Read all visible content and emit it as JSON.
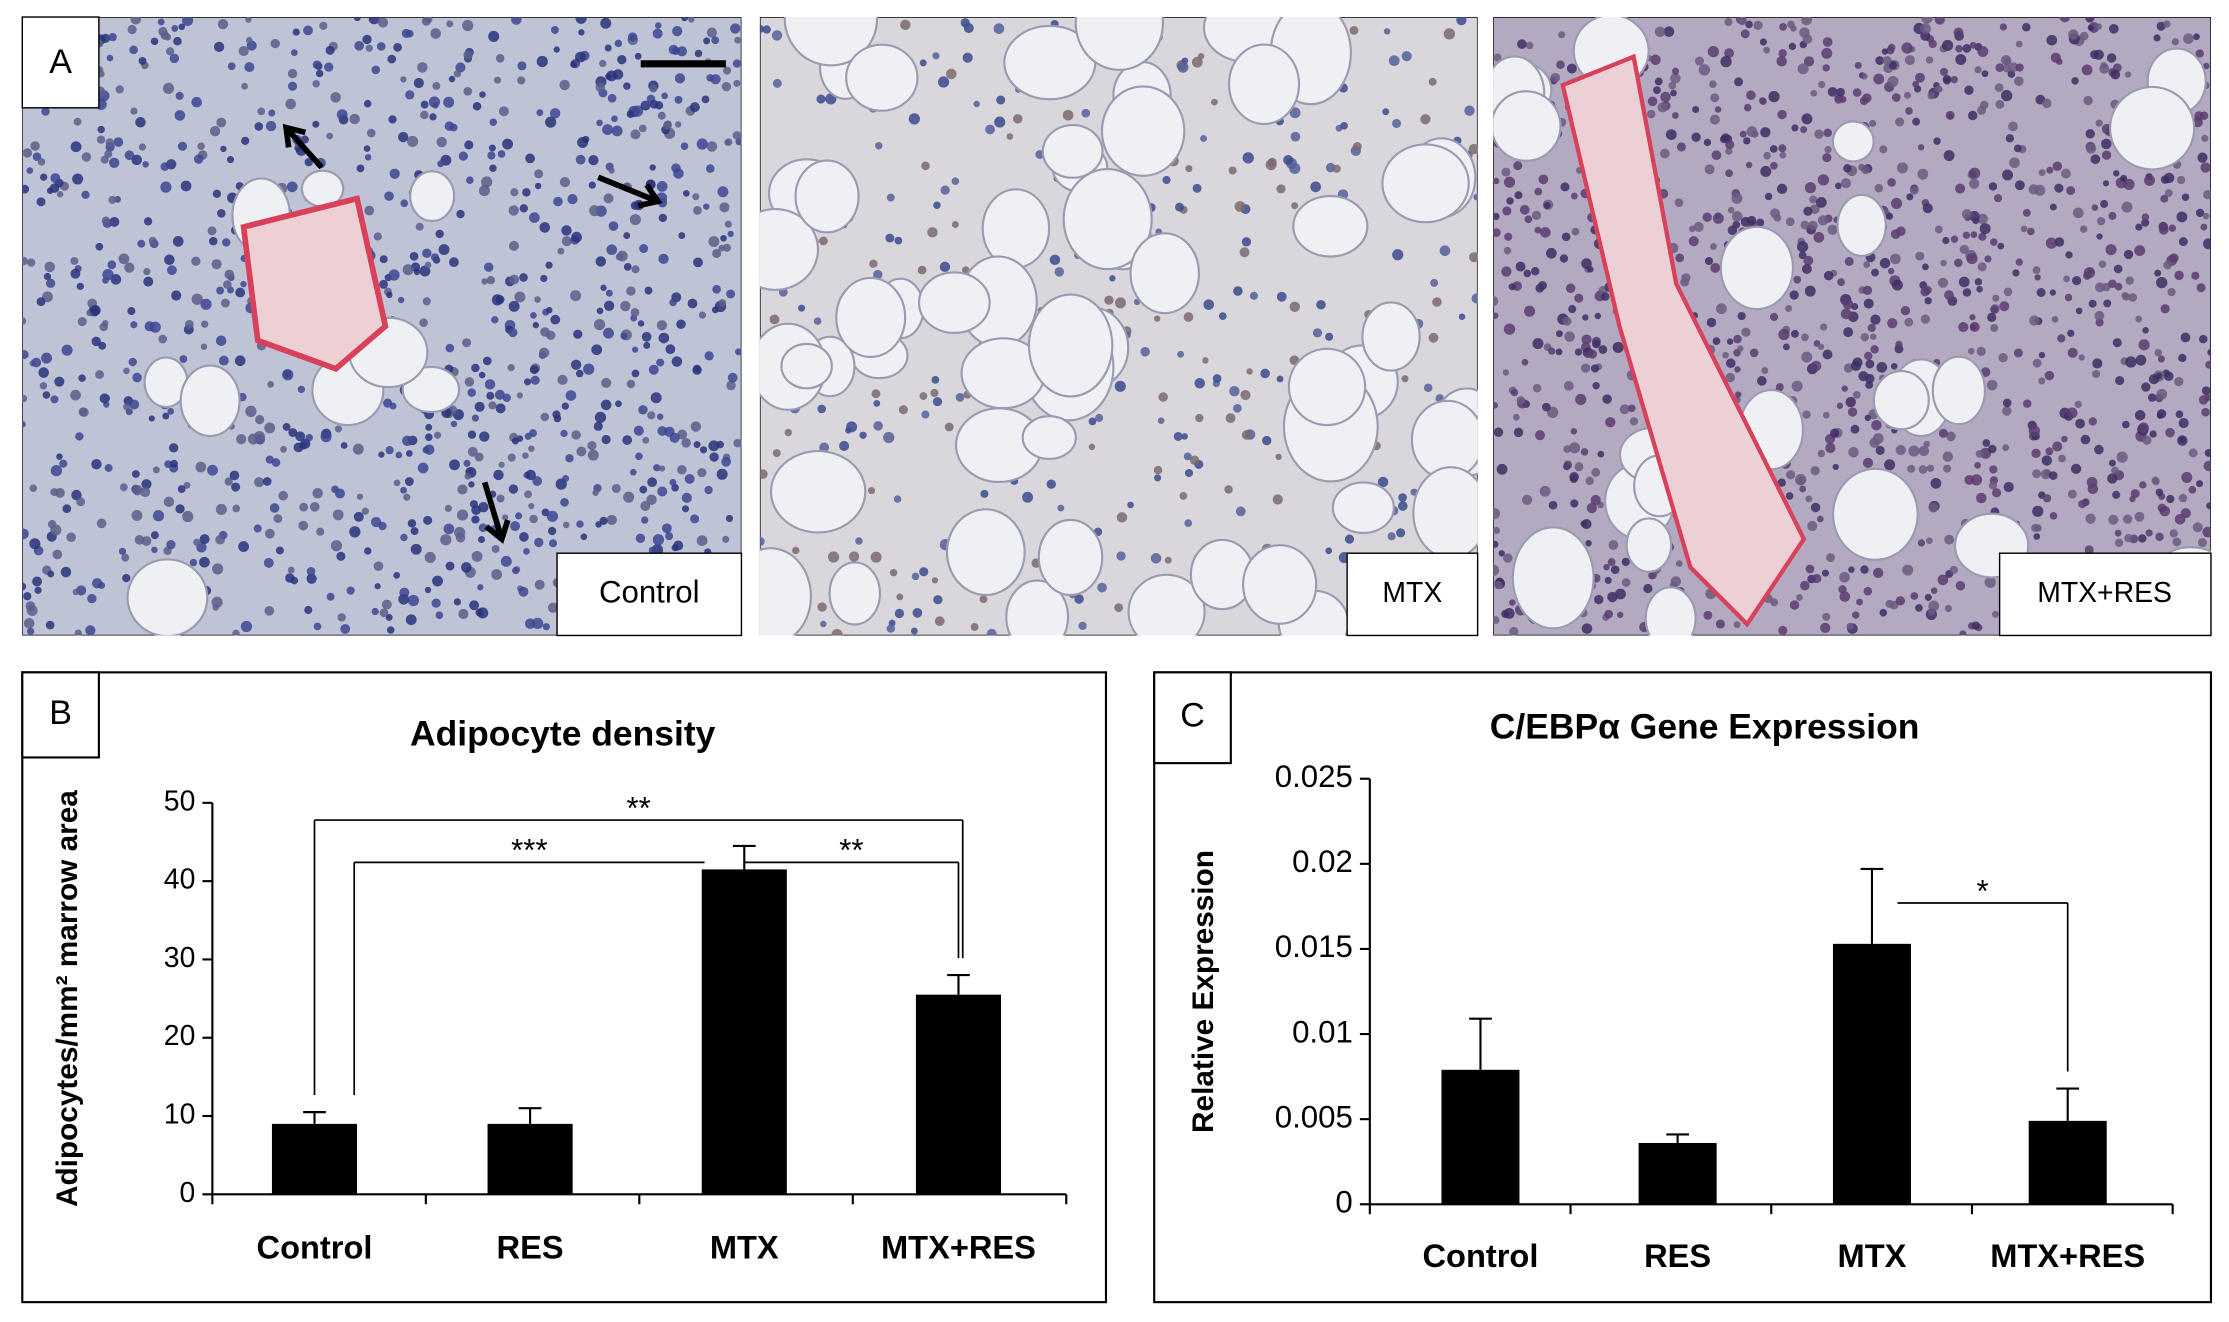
{
  "panel_a": {
    "label": "A",
    "images": [
      "Control",
      "MTX",
      "MTX+RES"
    ]
  },
  "chart_data": [
    {
      "type": "bar",
      "panel_label": "B",
      "title": "Adipocyte density",
      "y_label": "Adipocytes/mm² marrow area",
      "categories": [
        "Control",
        "RES",
        "MTX",
        "MTX+RES"
      ],
      "values": [
        9,
        9,
        41.5,
        25.5
      ],
      "errors": [
        1.5,
        2,
        3,
        2.5
      ],
      "color": "#000000",
      "ylim": [
        0,
        50
      ],
      "yticks": [
        0,
        10,
        20,
        30,
        40,
        50
      ],
      "annotations": [
        {
          "text": "**",
          "from": 0,
          "to": 3,
          "y": 47.8
        },
        {
          "text": "***",
          "from": 0,
          "to": 2,
          "y": 42.4
        },
        {
          "text": "**",
          "from": 2,
          "to": 3,
          "y": 42.4
        }
      ]
    },
    {
      "type": "bar",
      "panel_label": "C",
      "title": "C/EBPα Gene Expression",
      "y_label": "Relative Expression",
      "categories": [
        "Control",
        "RES",
        "MTX",
        "MTX+RES"
      ],
      "values": [
        0.0079,
        0.0036,
        0.0153,
        0.0049
      ],
      "errors": [
        0.003,
        0.0005,
        0.0044,
        0.0019
      ],
      "color": "#000000",
      "ylim": [
        0,
        0.025
      ],
      "yticks": [
        0,
        0.005,
        0.01,
        0.015,
        0.02,
        0.025
      ],
      "annotations": [
        {
          "text": "*",
          "from": 2,
          "to": 3,
          "y": 0.0177
        }
      ]
    }
  ]
}
